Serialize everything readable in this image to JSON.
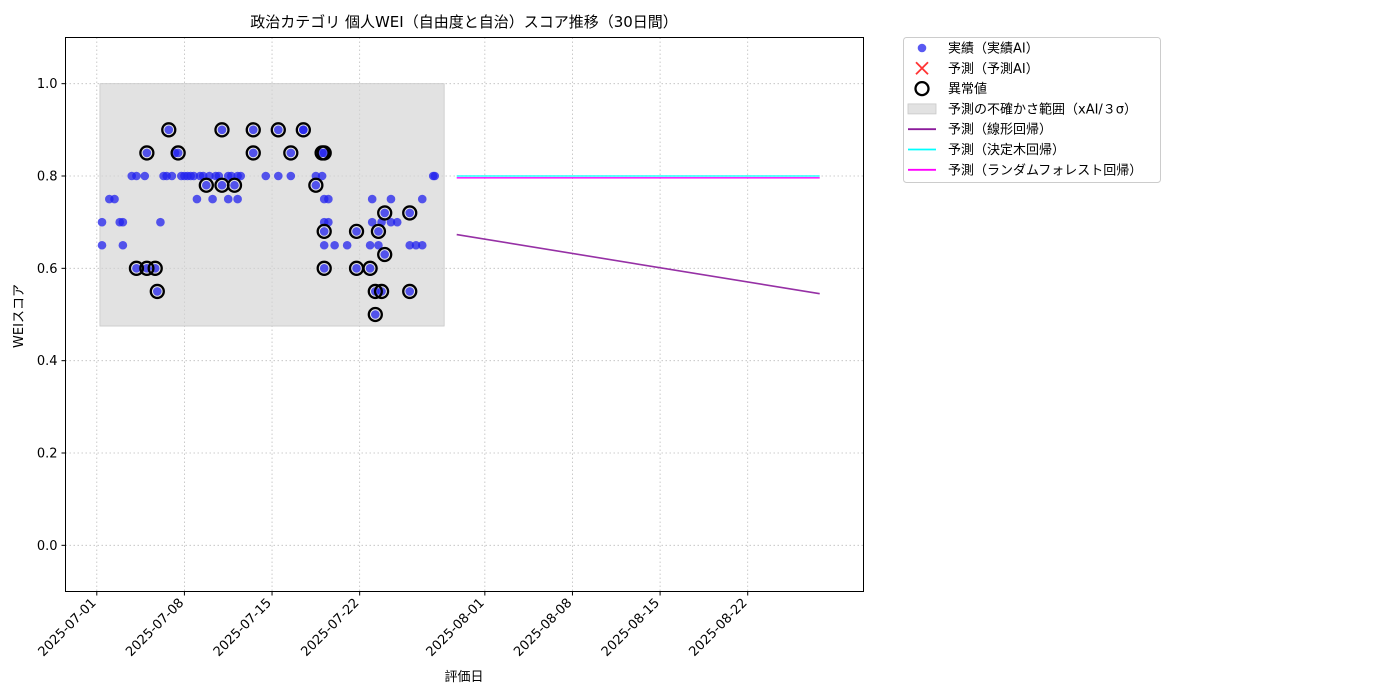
{
  "chart_data": {
    "type": "scatter",
    "title": "政治カテゴリ 個人WEI（自由度と自治）スコア推移（30日間）",
    "xlabel": "評価日",
    "ylabel": "WEIスコア",
    "xlim": [
      "2025-06-28T12:00",
      "2025-08-31T06:00"
    ],
    "ylim": [
      -0.1,
      1.1
    ],
    "x_ticks": [
      "2025-07-01",
      "2025-07-08",
      "2025-07-15",
      "2025-07-22",
      "2025-08-01",
      "2025-08-08",
      "2025-08-15",
      "2025-08-22"
    ],
    "y_ticks": [
      0.0,
      0.2,
      0.4,
      0.6,
      0.8,
      1.0
    ],
    "y_tick_labels": [
      "0.0",
      "0.2",
      "0.4",
      "0.6",
      "0.8",
      "1.0"
    ],
    "grid": true,
    "legend_position": "outside-upper-right",
    "colors": {
      "actual": "#2222ee",
      "predicted_ai": "#ff3333",
      "anomaly": "#000000",
      "uncertainty": "#d3d3d3",
      "linear": "#8b1a9b",
      "tree": "#00ffff",
      "forest": "#ff00ff"
    },
    "legend": [
      {
        "key": "actual",
        "label": "実績（実績AI）",
        "marker": "dot"
      },
      {
        "key": "predicted_ai",
        "label": "予測（予測AI）",
        "marker": "x"
      },
      {
        "key": "anomaly",
        "label": "異常値",
        "marker": "ring"
      },
      {
        "key": "uncertainty",
        "label": "予測の不確かさ範囲（xAI/３σ）",
        "marker": "band"
      },
      {
        "key": "linear",
        "label": "予測（線形回帰）",
        "marker": "line"
      },
      {
        "key": "tree",
        "label": "予測（決定木回帰）",
        "marker": "line"
      },
      {
        "key": "forest",
        "label": "予測（ランダムフォレスト回帰）",
        "marker": "line"
      }
    ],
    "uncertainty_band": {
      "x": [
        "2025-07-01T06:00",
        "2025-07-28T18:00"
      ],
      "y": [
        0.475,
        1.0
      ]
    },
    "series": [
      {
        "name": "実績（実績AI）",
        "type": "scatter",
        "points": [
          [
            "2025-07-01T10:00",
            0.7
          ],
          [
            "2025-07-01T10:00",
            0.65
          ],
          [
            "2025-07-02T00:00",
            0.75
          ],
          [
            "2025-07-02T10:00",
            0.75
          ],
          [
            "2025-07-02T20:00",
            0.7
          ],
          [
            "2025-07-03T02:00",
            0.7
          ],
          [
            "2025-07-03T02:00",
            0.65
          ],
          [
            "2025-07-03T19:00",
            0.8
          ],
          [
            "2025-07-04T04:00",
            0.8
          ],
          [
            "2025-07-04T04:00",
            0.6
          ],
          [
            "2025-07-04T20:00",
            0.8
          ],
          [
            "2025-07-05T00:00",
            0.85
          ],
          [
            "2025-07-05T00:00",
            0.6
          ],
          [
            "2025-07-05T16:00",
            0.6
          ],
          [
            "2025-07-05T20:00",
            0.55
          ],
          [
            "2025-07-06T02:00",
            0.7
          ],
          [
            "2025-07-06T08:00",
            0.8
          ],
          [
            "2025-07-06T14:00",
            0.8
          ],
          [
            "2025-07-06T18:00",
            0.9
          ],
          [
            "2025-07-07T00:00",
            0.8
          ],
          [
            "2025-07-07T06:00",
            0.85
          ],
          [
            "2025-07-07T12:00",
            0.85
          ],
          [
            "2025-07-07T18:00",
            0.8
          ],
          [
            "2025-07-08T00:00",
            0.8
          ],
          [
            "2025-07-08T06:00",
            0.8
          ],
          [
            "2025-07-08T12:00",
            0.8
          ],
          [
            "2025-07-08T18:00",
            0.8
          ],
          [
            "2025-07-09T00:00",
            0.75
          ],
          [
            "2025-07-09T06:00",
            0.8
          ],
          [
            "2025-07-09T12:00",
            0.8
          ],
          [
            "2025-07-09T18:00",
            0.78
          ],
          [
            "2025-07-10T00:00",
            0.8
          ],
          [
            "2025-07-10T06:00",
            0.75
          ],
          [
            "2025-07-10T12:00",
            0.8
          ],
          [
            "2025-07-10T18:00",
            0.8
          ],
          [
            "2025-07-11T00:00",
            0.78
          ],
          [
            "2025-07-11T00:00",
            0.9
          ],
          [
            "2025-07-11T12:00",
            0.8
          ],
          [
            "2025-07-11T12:00",
            0.75
          ],
          [
            "2025-07-11T18:00",
            0.8
          ],
          [
            "2025-07-12T00:00",
            0.78
          ],
          [
            "2025-07-12T06:00",
            0.8
          ],
          [
            "2025-07-12T06:00",
            0.75
          ],
          [
            "2025-07-12T12:00",
            0.8
          ],
          [
            "2025-07-13T12:00",
            0.85
          ],
          [
            "2025-07-13T12:00",
            0.9
          ],
          [
            "2025-07-14T12:00",
            0.8
          ],
          [
            "2025-07-15T12:00",
            0.9
          ],
          [
            "2025-07-15T12:00",
            0.8
          ],
          [
            "2025-07-16T12:00",
            0.85
          ],
          [
            "2025-07-16T12:00",
            0.8
          ],
          [
            "2025-07-17T12:00",
            0.9
          ],
          [
            "2025-07-17T12:00",
            0.9
          ],
          [
            "2025-07-18T12:00",
            0.78
          ],
          [
            "2025-07-18T12:00",
            0.8
          ],
          [
            "2025-07-19T00:00",
            0.85
          ],
          [
            "2025-07-19T00:00",
            0.8
          ],
          [
            "2025-07-19T04:00",
            0.85
          ],
          [
            "2025-07-19T04:00",
            0.75
          ],
          [
            "2025-07-19T04:00",
            0.7
          ],
          [
            "2025-07-19T04:00",
            0.68
          ],
          [
            "2025-07-19T04:00",
            0.65
          ],
          [
            "2025-07-19T04:00",
            0.6
          ],
          [
            "2025-07-19T12:00",
            0.75
          ],
          [
            "2025-07-19T12:00",
            0.7
          ],
          [
            "2025-07-20T00:00",
            0.65
          ],
          [
            "2025-07-21T00:00",
            0.65
          ],
          [
            "2025-07-21T18:00",
            0.68
          ],
          [
            "2025-07-21T18:00",
            0.6
          ],
          [
            "2025-07-22T20:00",
            0.6
          ],
          [
            "2025-07-22T20:00",
            0.65
          ],
          [
            "2025-07-23T00:00",
            0.75
          ],
          [
            "2025-07-23T00:00",
            0.7
          ],
          [
            "2025-07-23T06:00",
            0.55
          ],
          [
            "2025-07-23T06:00",
            0.5
          ],
          [
            "2025-07-23T12:00",
            0.68
          ],
          [
            "2025-07-23T12:00",
            0.65
          ],
          [
            "2025-07-23T18:00",
            0.55
          ],
          [
            "2025-07-23T18:00",
            0.7
          ],
          [
            "2025-07-24T00:00",
            0.72
          ],
          [
            "2025-07-24T00:00",
            0.63
          ],
          [
            "2025-07-24T12:00",
            0.75
          ],
          [
            "2025-07-24T12:00",
            0.7
          ],
          [
            "2025-07-25T00:00",
            0.7
          ],
          [
            "2025-07-26T00:00",
            0.72
          ],
          [
            "2025-07-26T00:00",
            0.65
          ],
          [
            "2025-07-26T00:00",
            0.55
          ],
          [
            "2025-07-26T12:00",
            0.65
          ],
          [
            "2025-07-27T00:00",
            0.75
          ],
          [
            "2025-07-27T00:00",
            0.65
          ],
          [
            "2025-07-27T21:00",
            0.8
          ],
          [
            "2025-07-28T00:00",
            0.8
          ]
        ]
      },
      {
        "name": "異常値",
        "type": "scatter",
        "points": [
          [
            "2025-07-04T04:00",
            0.6
          ],
          [
            "2025-07-05T00:00",
            0.85
          ],
          [
            "2025-07-05T00:00",
            0.6
          ],
          [
            "2025-07-05T16:00",
            0.6
          ],
          [
            "2025-07-05T20:00",
            0.55
          ],
          [
            "2025-07-06T18:00",
            0.9
          ],
          [
            "2025-07-07T12:00",
            0.85
          ],
          [
            "2025-07-09T18:00",
            0.78
          ],
          [
            "2025-07-11T00:00",
            0.9
          ],
          [
            "2025-07-11T00:00",
            0.78
          ],
          [
            "2025-07-12T00:00",
            0.78
          ],
          [
            "2025-07-13T12:00",
            0.9
          ],
          [
            "2025-07-13T12:00",
            0.85
          ],
          [
            "2025-07-15T12:00",
            0.9
          ],
          [
            "2025-07-16T12:00",
            0.85
          ],
          [
            "2025-07-17T12:00",
            0.9
          ],
          [
            "2025-07-18T12:00",
            0.78
          ],
          [
            "2025-07-19T00:00",
            0.85
          ],
          [
            "2025-07-19T04:00",
            0.85
          ],
          [
            "2025-07-19T04:00",
            0.68
          ],
          [
            "2025-07-19T04:00",
            0.6
          ],
          [
            "2025-07-21T18:00",
            0.68
          ],
          [
            "2025-07-21T18:00",
            0.6
          ],
          [
            "2025-07-22T20:00",
            0.6
          ],
          [
            "2025-07-23T06:00",
            0.55
          ],
          [
            "2025-07-23T06:00",
            0.5
          ],
          [
            "2025-07-23T12:00",
            0.68
          ],
          [
            "2025-07-23T18:00",
            0.55
          ],
          [
            "2025-07-24T00:00",
            0.72
          ],
          [
            "2025-07-24T00:00",
            0.63
          ],
          [
            "2025-07-26T00:00",
            0.72
          ],
          [
            "2025-07-26T00:00",
            0.55
          ]
        ]
      },
      {
        "name": "予測（線形回帰）",
        "type": "line",
        "points": [
          [
            "2025-07-29T18:00",
            0.673
          ],
          [
            "2025-08-27T18:00",
            0.545
          ]
        ]
      },
      {
        "name": "予測（決定木回帰）",
        "type": "line",
        "points": [
          [
            "2025-07-29T18:00",
            0.8
          ],
          [
            "2025-08-27T18:00",
            0.8
          ]
        ]
      },
      {
        "name": "予測（ランダムフォレスト回帰）",
        "type": "line",
        "points": [
          [
            "2025-07-29T18:00",
            0.796
          ],
          [
            "2025-08-27T18:00",
            0.796
          ]
        ]
      }
    ]
  }
}
